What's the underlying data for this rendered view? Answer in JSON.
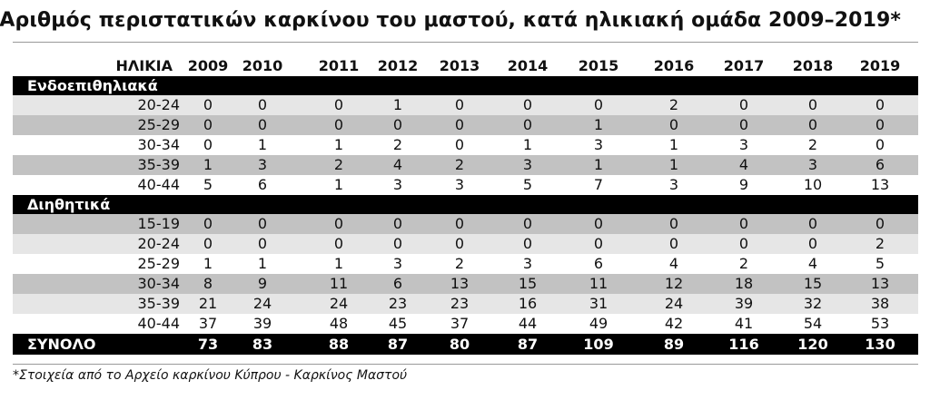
{
  "title": "Αριθμός περιστατικών καρκίνου του μαστού, κατά ηλικιακή ομάδα 2009–2019*",
  "header": {
    "label": "ΗΛΙΚΙΑ",
    "years": [
      "2009",
      "2010",
      "2011",
      "2012",
      "2013",
      "2014",
      "2015",
      "2016",
      "2017",
      "2018",
      "2019"
    ]
  },
  "sections": [
    {
      "label": "Ενδοεπιθηλιακά",
      "rows": [
        {
          "age": "20-24",
          "values": [
            "0",
            "0",
            "0",
            "1",
            "0",
            "0",
            "0",
            "2",
            "0",
            "0",
            "0"
          ]
        },
        {
          "age": "25-29",
          "values": [
            "0",
            "0",
            "0",
            "0",
            "0",
            "0",
            "1",
            "0",
            "0",
            "0",
            "0"
          ]
        },
        {
          "age": "30-34",
          "values": [
            "0",
            "1",
            "1",
            "2",
            "0",
            "1",
            "3",
            "1",
            "3",
            "2",
            "0"
          ]
        },
        {
          "age": "35-39",
          "values": [
            "1",
            "3",
            "2",
            "4",
            "2",
            "3",
            "1",
            "1",
            "4",
            "3",
            "6"
          ]
        },
        {
          "age": "40-44",
          "values": [
            "5",
            "6",
            "1",
            "3",
            "3",
            "5",
            "7",
            "3",
            "9",
            "10",
            "13"
          ]
        }
      ]
    },
    {
      "label": "Διηθητικά",
      "rows": [
        {
          "age": "15-19",
          "values": [
            "0",
            "0",
            "0",
            "0",
            "0",
            "0",
            "0",
            "0",
            "0",
            "0",
            "0"
          ]
        },
        {
          "age": "20-24",
          "values": [
            "0",
            "0",
            "0",
            "0",
            "0",
            "0",
            "0",
            "0",
            "0",
            "0",
            "2"
          ]
        },
        {
          "age": "25-29",
          "values": [
            "1",
            "1",
            "1",
            "3",
            "2",
            "3",
            "6",
            "4",
            "2",
            "4",
            "5"
          ]
        },
        {
          "age": "30-34",
          "values": [
            "8",
            "9",
            "11",
            "6",
            "13",
            "15",
            "11",
            "12",
            "18",
            "15",
            "13"
          ]
        },
        {
          "age": "35-39",
          "values": [
            "21",
            "24",
            "24",
            "23",
            "23",
            "16",
            "31",
            "24",
            "39",
            "32",
            "38"
          ]
        },
        {
          "age": "40-44",
          "values": [
            "37",
            "39",
            "48",
            "45",
            "37",
            "44",
            "49",
            "42",
            "41",
            "54",
            "53"
          ]
        }
      ]
    }
  ],
  "total": {
    "label": "ΣΥΝΟΛΟ",
    "values": [
      "73",
      "83",
      "88",
      "87",
      "80",
      "87",
      "109",
      "89",
      "116",
      "120",
      "130"
    ]
  },
  "footnote": "*Στοιχεία από το Αρχείο καρκίνου Κύπρου - Καρκίνος Μαστού"
}
